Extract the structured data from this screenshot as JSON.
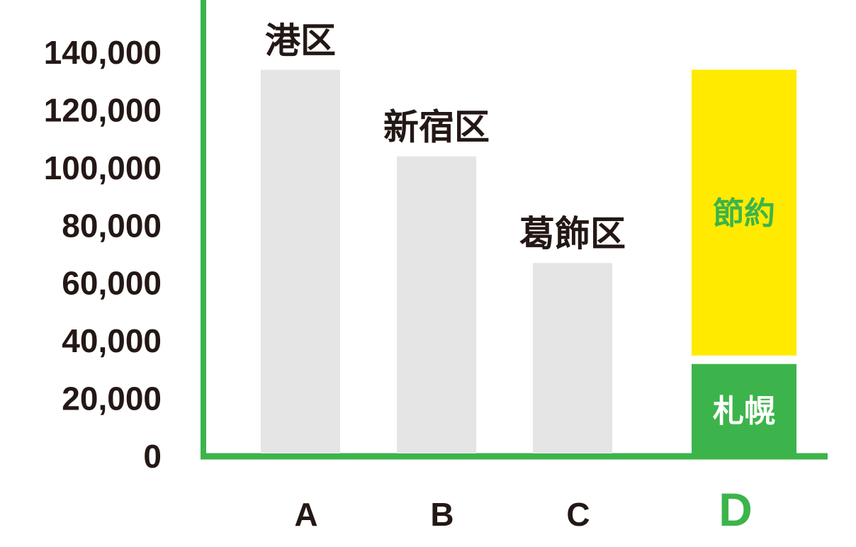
{
  "chart_data": {
    "type": "bar",
    "categories": [
      "A",
      "B",
      "C",
      "D"
    ],
    "y_ticks": [
      "0",
      "20,000",
      "40,000",
      "60,000",
      "80,000",
      "100,000",
      "120,000",
      "140,000"
    ],
    "ylim": [
      0,
      140000
    ],
    "bars": [
      {
        "category": "A",
        "label": "港区",
        "value": 134000
      },
      {
        "category": "B",
        "label": "新宿区",
        "value": 104000
      },
      {
        "category": "C",
        "label": "葛飾区",
        "value": 67000
      },
      {
        "category": "D",
        "segments": [
          {
            "label": "札幌",
            "value": 32000
          },
          {
            "label": "節約",
            "value": 102000
          }
        ]
      }
    ],
    "grid": false,
    "colors": {
      "axis": "#3cb44b",
      "plain_bar": "#e5e5e5",
      "base_segment": "#3cb44b",
      "savings_segment": "#ffea00",
      "text": "#231815",
      "highlight_text": "#3cb44b"
    }
  }
}
